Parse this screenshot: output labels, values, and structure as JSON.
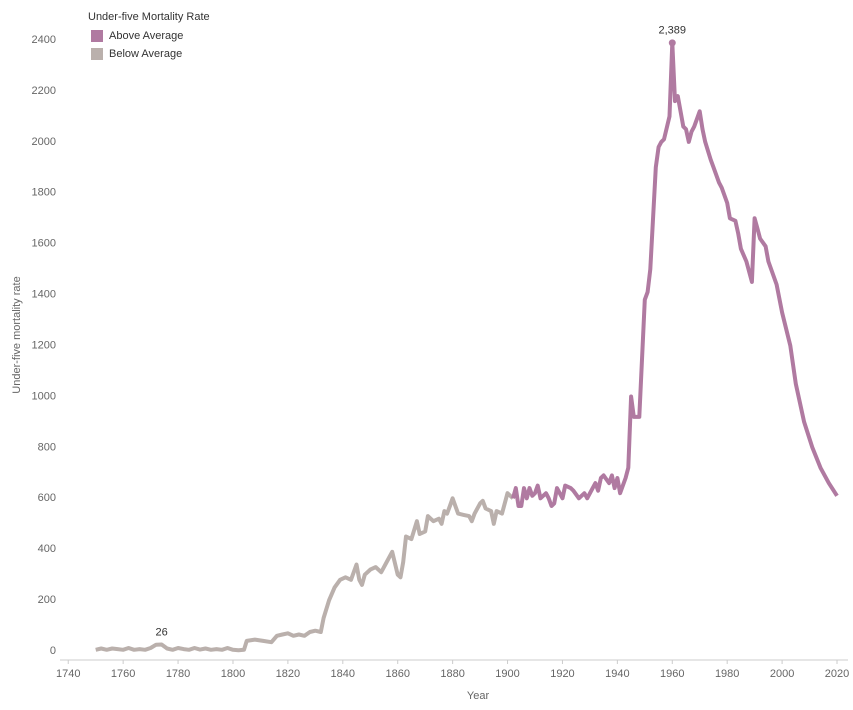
{
  "chart_data": {
    "type": "line",
    "legend_title": "Under-five Mortality Rate",
    "x_label": "Year",
    "y_label": "Under-five mortality rate",
    "xlim": [
      1737,
      2024
    ],
    "ylim": [
      -35,
      2518
    ],
    "xticks": [
      1740,
      1760,
      1780,
      1800,
      1820,
      1840,
      1860,
      1880,
      1900,
      1920,
      1940,
      1960,
      1980,
      2000,
      2020
    ],
    "yticks": [
      0,
      200,
      400,
      600,
      800,
      1000,
      1200,
      1400,
      1600,
      1800,
      2000,
      2200,
      2400
    ],
    "grid": false,
    "legend_position": "top-left",
    "series": [
      {
        "name": "Above Average",
        "color": "#b07aa1",
        "x": [
          1902,
          1903,
          1904,
          1905,
          1906,
          1907,
          1908,
          1909,
          1910,
          1911,
          1912,
          1914,
          1915,
          1916,
          1917,
          1918,
          1920,
          1921,
          1923,
          1924,
          1926,
          1928,
          1929,
          1931,
          1932,
          1933,
          1934,
          1935,
          1937,
          1938,
          1939,
          1940,
          1941,
          1943,
          1944,
          1945,
          1946,
          1948,
          1950,
          1951,
          1952,
          1954,
          1955,
          1956,
          1957,
          1959,
          1960,
          1961,
          1962,
          1964,
          1965,
          1966,
          1967,
          1968,
          1970,
          1971,
          1972,
          1974,
          1975,
          1977,
          1978,
          1980,
          1981,
          1983,
          1984,
          1985,
          1987,
          1989,
          1990,
          1991,
          1992,
          1994,
          1995,
          1998,
          2000,
          2003,
          2005,
          2008,
          2011,
          2014,
          2017,
          2020
        ],
        "values": [
          600,
          640,
          570,
          570,
          640,
          600,
          640,
          610,
          620,
          650,
          600,
          620,
          600,
          570,
          580,
          640,
          600,
          650,
          640,
          630,
          600,
          620,
          600,
          640,
          660,
          630,
          680,
          690,
          660,
          690,
          640,
          680,
          620,
          680,
          720,
          1000,
          920,
          920,
          1380,
          1410,
          1500,
          1900,
          1980,
          2000,
          2010,
          2100,
          2389,
          2160,
          2180,
          2060,
          2050,
          2000,
          2040,
          2060,
          2120,
          2050,
          2000,
          1930,
          1900,
          1840,
          1820,
          1760,
          1700,
          1690,
          1640,
          1580,
          1530,
          1450,
          1700,
          1660,
          1620,
          1590,
          1530,
          1440,
          1330,
          1200,
          1050,
          900,
          800,
          720,
          660,
          610
        ]
      },
      {
        "name": "Below Average",
        "color": "#bab0ac",
        "x": [
          1750,
          1752,
          1754,
          1756,
          1758,
          1760,
          1762,
          1764,
          1766,
          1768,
          1770,
          1772,
          1774,
          1776,
          1778,
          1780,
          1782,
          1784,
          1786,
          1788,
          1790,
          1792,
          1794,
          1796,
          1798,
          1800,
          1802,
          1804,
          1805,
          1808,
          1811,
          1814,
          1816,
          1818,
          1820,
          1822,
          1824,
          1826,
          1828,
          1830,
          1832,
          1833,
          1835,
          1837,
          1839,
          1841,
          1843,
          1845,
          1846,
          1847,
          1848,
          1850,
          1852,
          1854,
          1856,
          1858,
          1860,
          1861,
          1862,
          1863,
          1865,
          1867,
          1868,
          1870,
          1871,
          1873,
          1875,
          1876,
          1877,
          1878,
          1879,
          1880,
          1882,
          1884,
          1886,
          1887,
          1888,
          1890,
          1891,
          1892,
          1894,
          1895,
          1896,
          1898,
          1900,
          1902
        ],
        "values": [
          5,
          10,
          5,
          10,
          8,
          5,
          12,
          5,
          8,
          5,
          12,
          25,
          26,
          10,
          5,
          12,
          8,
          5,
          12,
          6,
          10,
          5,
          8,
          5,
          12,
          5,
          3,
          5,
          40,
          45,
          40,
          35,
          60,
          65,
          70,
          60,
          65,
          60,
          75,
          80,
          75,
          130,
          200,
          250,
          280,
          290,
          280,
          340,
          280,
          260,
          300,
          320,
          330,
          310,
          350,
          390,
          300,
          290,
          350,
          450,
          440,
          510,
          460,
          470,
          530,
          510,
          520,
          500,
          550,
          540,
          570,
          600,
          540,
          535,
          530,
          510,
          540,
          580,
          590,
          560,
          550,
          500,
          550,
          540,
          620,
          600
        ]
      }
    ],
    "annotations": [
      {
        "x": 1960,
        "value": 2389,
        "label": "2,389"
      },
      {
        "x": 1774,
        "value": 26,
        "label": "26"
      }
    ]
  }
}
